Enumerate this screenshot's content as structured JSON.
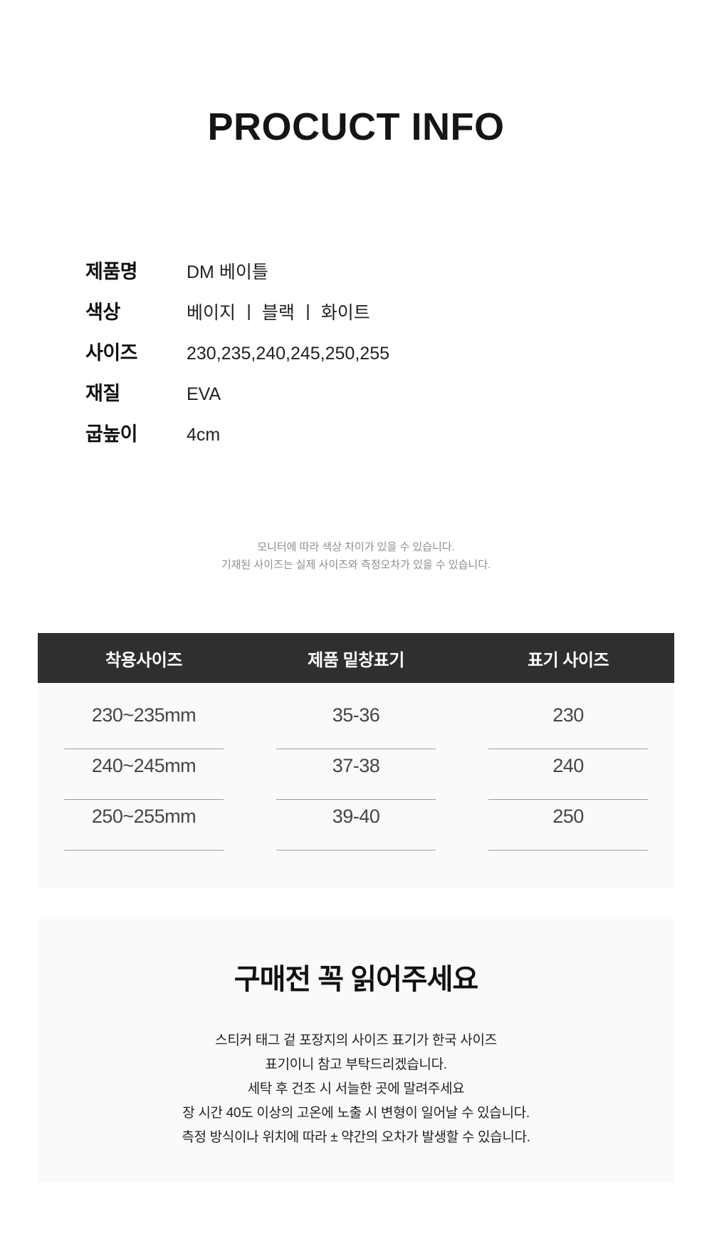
{
  "header": {
    "title": "PROCUCT INFO"
  },
  "specs": {
    "rows": [
      {
        "label": "제품명",
        "value": "DM 베이틀"
      },
      {
        "label": "색상",
        "value": "베이지 ㅣ 블랙 ㅣ 화이트"
      },
      {
        "label": "사이즈",
        "value": "230,235,240,245,250,255"
      },
      {
        "label": "재질",
        "value": "EVA"
      },
      {
        "label": "굽높이",
        "value": "4cm"
      }
    ],
    "disclaimers": [
      "모니터에 따라 색상 차이가 있을 수 있습니다.",
      "기재된 사이즈는 실제 사이즈와 측정오차가 있을 수 있습니다."
    ]
  },
  "size_table": {
    "headers": [
      "착용사이즈",
      "제품 밑창표기",
      "표기 사이즈"
    ],
    "rows": [
      [
        "230~235mm",
        "35-36",
        "230"
      ],
      [
        "240~245mm",
        "37-38",
        "240"
      ],
      [
        "250~255mm",
        "39-40",
        "250"
      ]
    ],
    "colors": {
      "header_bg": "#2f2f31",
      "header_text": "#ffffff",
      "body_bg": "#fafafa",
      "cell_text": "#454545",
      "underline": "#9c9c9c"
    }
  },
  "notice": {
    "title": "구매전 꼭 읽어주세요",
    "lines": [
      "스티커 태그 겉 포장지의 사이즈 표기가 한국 사이즈",
      "표기이니 참고 부탁드리겠습니다.",
      "세탁 후 건조 시 서늘한 곳에 말려주세요",
      "장 시간 40도 이상의 고온에 노출 시 변형이 일어날 수 있습니다.",
      "측정 방식이나 위치에 따라 ± 약간의 오차가 발생할 수 있습니다."
    ],
    "bg": "#fafafa"
  }
}
